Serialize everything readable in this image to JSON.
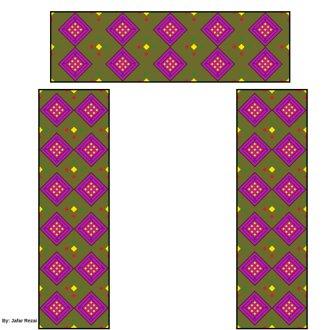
{
  "credit": "By: Jafar Rezai",
  "palette": {
    "ground": "#6b6b2c",
    "diamond": "#c31aa0",
    "deep": "#5a1e8c",
    "accent": "#ffe600",
    "green": "#1f8f2a",
    "red": "#d61f1f",
    "outline": "#1a1a1a"
  }
}
